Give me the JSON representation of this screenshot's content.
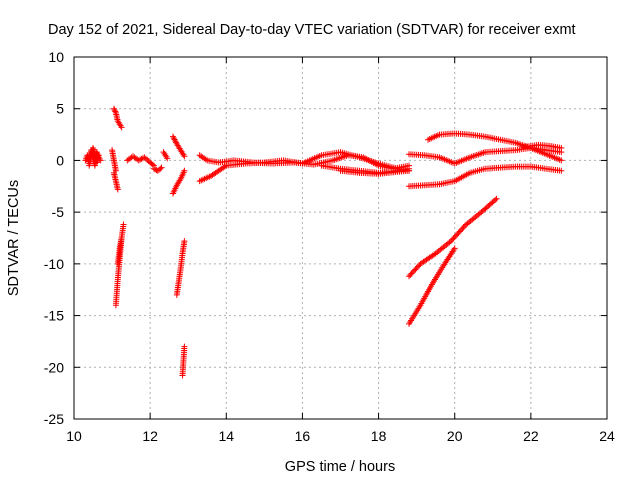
{
  "chart_data": {
    "type": "scatter",
    "title": "Day 152 of 2021, Sidereal Day-to-day VTEC variation (SDTVAR) for receiver exmt",
    "xlabel": "GPS time / hours",
    "ylabel": "SDTVAR / TECUs",
    "xlim": [
      10,
      24
    ],
    "ylim": [
      -25,
      10
    ],
    "xticks": [
      10,
      12,
      14,
      16,
      18,
      20,
      22,
      24
    ],
    "yticks": [
      -25,
      -20,
      -15,
      -10,
      -5,
      0,
      5,
      10
    ],
    "xtick_labels": [
      "10",
      "12",
      "14",
      "16",
      "18",
      "20",
      "22",
      "24"
    ],
    "ytick_labels": [
      "-25",
      "-20",
      "-15",
      "-10",
      "-5",
      "0",
      "5",
      "10"
    ],
    "grid": true,
    "marker": "+",
    "color": "#ff0000",
    "series": [
      {
        "name": "s1",
        "x": [
          10.3,
          10.35,
          10.4,
          10.45,
          10.5,
          10.55,
          10.6,
          10.65,
          10.7
        ],
        "y": [
          0.0,
          0.5,
          -0.3,
          1.0,
          0.2,
          -0.5,
          0.8,
          0.3,
          0.0
        ]
      },
      {
        "name": "s2",
        "x": [
          10.4,
          10.45,
          10.5,
          10.55,
          10.6,
          10.65
        ],
        "y": [
          -0.5,
          0.4,
          1.2,
          0.6,
          -0.2,
          0.5
        ]
      },
      {
        "name": "s3",
        "x": [
          11.05,
          11.1,
          11.15,
          11.2,
          11.25
        ],
        "y": [
          5.0,
          4.6,
          3.8,
          3.5,
          3.2
        ]
      },
      {
        "name": "s4",
        "x": [
          11.0,
          11.05,
          11.1
        ],
        "y": [
          1.0,
          0.0,
          -1.0
        ]
      },
      {
        "name": "s5",
        "x": [
          11.05,
          11.1,
          11.15
        ],
        "y": [
          -1.2,
          -2.0,
          -2.8
        ]
      },
      {
        "name": "s6",
        "x": [
          11.1,
          11.15,
          11.2,
          11.25,
          11.3
        ],
        "y": [
          -14.0,
          -11.5,
          -9.5,
          -7.5,
          -6.2
        ]
      },
      {
        "name": "s7",
        "x": [
          11.15,
          11.2,
          11.25
        ],
        "y": [
          -10.0,
          -8.5,
          -7.5
        ]
      },
      {
        "name": "s8",
        "x": [
          11.4,
          11.55,
          11.7,
          11.85,
          12.0,
          12.1
        ],
        "y": [
          0.0,
          0.4,
          0.0,
          0.3,
          -0.2,
          -0.5
        ]
      },
      {
        "name": "s9",
        "x": [
          12.1,
          12.2,
          12.3
        ],
        "y": [
          -0.8,
          -1.0,
          -0.7
        ]
      },
      {
        "name": "s10",
        "x": [
          12.35,
          12.45
        ],
        "y": [
          0.8,
          0.2
        ]
      },
      {
        "name": "s11",
        "x": [
          12.6,
          12.7,
          12.8,
          12.9
        ],
        "y": [
          2.3,
          1.6,
          1.0,
          0.4
        ]
      },
      {
        "name": "s12",
        "x": [
          12.6,
          12.7,
          12.8,
          12.9
        ],
        "y": [
          -3.2,
          -2.4,
          -1.8,
          -1.0
        ]
      },
      {
        "name": "s13",
        "x": [
          12.7,
          12.8,
          12.85,
          12.9
        ],
        "y": [
          -13.0,
          -10.5,
          -9.0,
          -7.8
        ]
      },
      {
        "name": "s14",
        "x": [
          12.85,
          12.9
        ],
        "y": [
          -20.8,
          -18.0
        ]
      },
      {
        "name": "s15",
        "x": [
          13.3,
          13.5,
          13.8,
          14.2,
          14.7,
          15.2,
          15.8,
          16.3,
          16.8,
          17.2,
          17.6,
          18.0,
          18.4,
          18.8
        ],
        "y": [
          0.5,
          0.0,
          -0.2,
          0.0,
          -0.2,
          -0.3,
          -0.2,
          -0.4,
          0.0,
          0.5,
          0.3,
          -0.5,
          -0.8,
          -0.5
        ]
      },
      {
        "name": "s16",
        "x": [
          13.3,
          13.6,
          14.0,
          14.5,
          15.0,
          15.5,
          16.0,
          16.5,
          17.0,
          17.5,
          18.0,
          18.5,
          18.8
        ],
        "y": [
          -2.0,
          -1.5,
          -0.5,
          -0.3,
          -0.2,
          0.0,
          -0.3,
          0.5,
          0.8,
          0.3,
          -0.3,
          -0.8,
          -1.0
        ]
      },
      {
        "name": "s17",
        "x": [
          16.5,
          17.0,
          17.5,
          18.0,
          18.5,
          18.8
        ],
        "y": [
          -0.5,
          -0.8,
          -1.0,
          -1.2,
          -1.0,
          -0.8
        ]
      },
      {
        "name": "s18",
        "x": [
          17.0,
          17.5,
          18.0,
          18.5,
          18.8
        ],
        "y": [
          -1.0,
          -1.2,
          -1.3,
          -1.1,
          -1.0
        ]
      },
      {
        "name": "s19",
        "x": [
          18.8,
          19.2,
          19.6,
          20.0,
          20.4,
          20.8,
          21.2,
          21.6,
          22.0,
          22.4,
          22.8
        ],
        "y": [
          0.6,
          0.5,
          0.3,
          -0.3,
          0.3,
          0.8,
          0.9,
          1.0,
          1.2,
          1.0,
          0.8
        ]
      },
      {
        "name": "s20",
        "x": [
          18.8,
          19.2,
          19.6,
          20.0,
          20.4,
          20.8,
          21.2,
          21.6,
          22.0,
          22.4,
          22.8
        ],
        "y": [
          -2.5,
          -2.4,
          -2.3,
          -2.0,
          -1.2,
          -0.8,
          -0.7,
          -0.6,
          -0.6,
          -0.8,
          -1.0
        ]
      },
      {
        "name": "s21",
        "x": [
          19.3,
          19.6,
          20.0,
          20.4,
          20.8,
          21.2,
          21.6,
          22.0,
          22.4,
          22.8
        ],
        "y": [
          2.0,
          2.5,
          2.6,
          2.5,
          2.3,
          2.0,
          1.7,
          1.2,
          0.6,
          0.0
        ]
      },
      {
        "name": "s22",
        "x": [
          21.8,
          22.2,
          22.5,
          22.8
        ],
        "y": [
          1.3,
          1.5,
          1.4,
          1.2
        ]
      },
      {
        "name": "s23",
        "x": [
          18.8,
          19.1,
          19.5,
          19.9,
          20.3,
          20.7,
          21.1
        ],
        "y": [
          -11.2,
          -10.0,
          -9.0,
          -7.8,
          -6.2,
          -5.0,
          -3.7
        ]
      },
      {
        "name": "s24",
        "x": [
          18.8,
          19.1,
          19.4,
          19.7,
          20.0
        ],
        "y": [
          -15.8,
          -14.0,
          -12.0,
          -10.2,
          -8.5
        ]
      }
    ]
  }
}
